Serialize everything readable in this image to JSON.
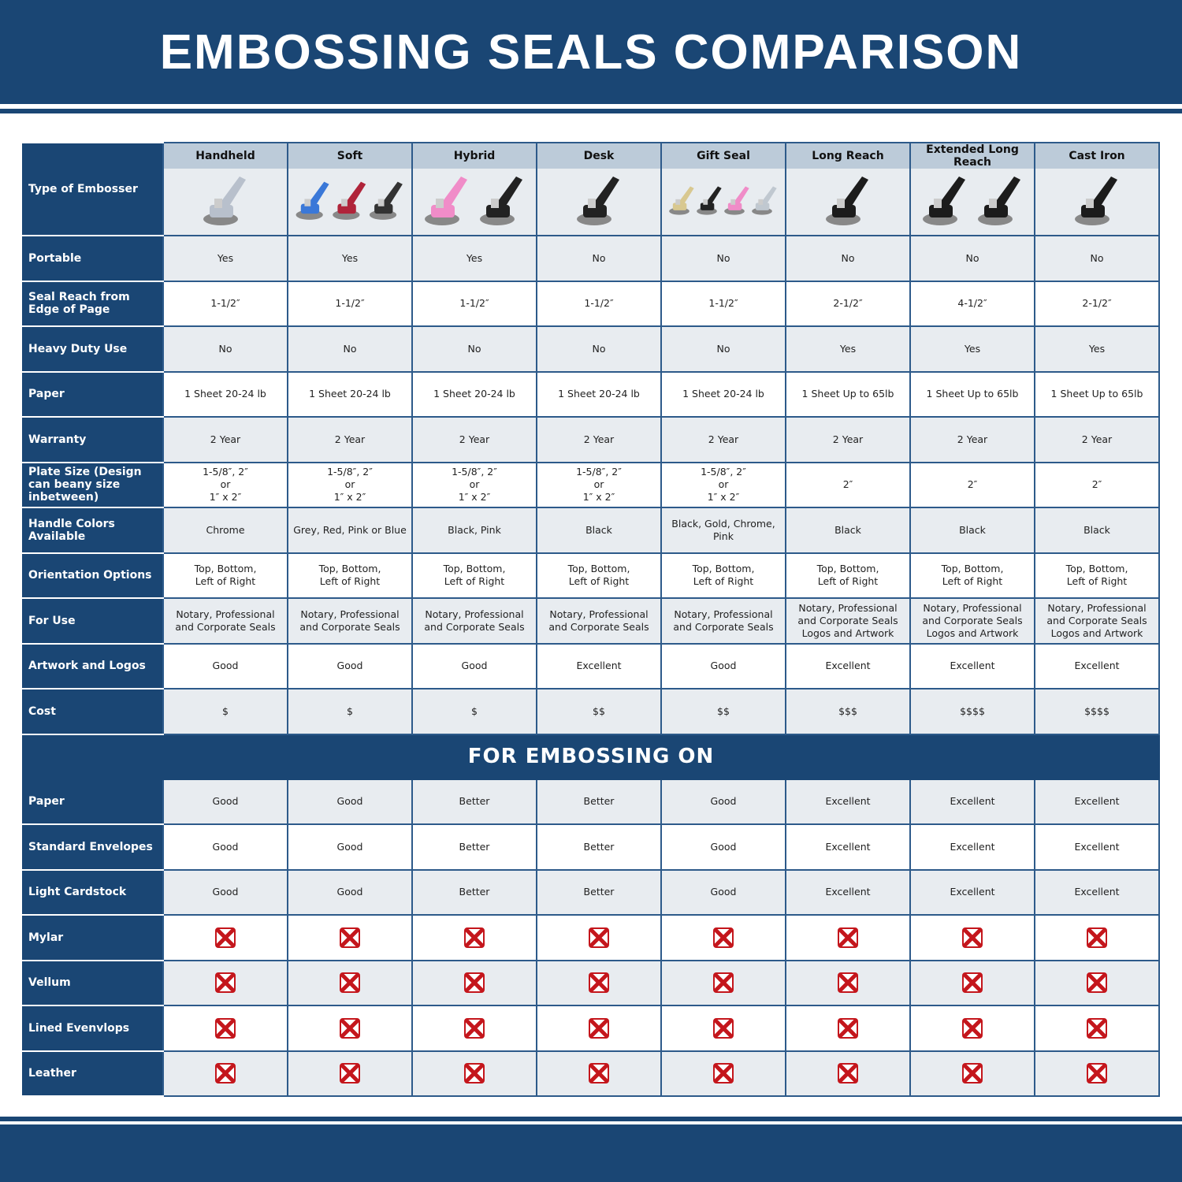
{
  "title": "EMBOSSING SEALS COMPARISON",
  "colors": {
    "primary": "#1a4674",
    "header_band": "#bccbd9",
    "row_alt": "#e8ecf0",
    "x_icon": "#c4161c"
  },
  "corner_label": "Type of Embosser",
  "columns": [
    "Handheld",
    "Soft",
    "Hybrid",
    "Desk",
    "Gift Seal",
    "Long Reach",
    "Extended Long Reach",
    "Cast Iron"
  ],
  "rows": [
    {
      "label": "Portable",
      "values": [
        "Yes",
        "Yes",
        "Yes",
        "No",
        "No",
        "No",
        "No",
        "No"
      ]
    },
    {
      "label": "Seal Reach from Edge of Page",
      "values": [
        "1-1/2″",
        "1-1/2″",
        "1-1/2″",
        "1-1/2″",
        "1-1/2″",
        "2-1/2″",
        "4-1/2″",
        "2-1/2″"
      ]
    },
    {
      "label": "Heavy Duty Use",
      "values": [
        "No",
        "No",
        "No",
        "No",
        "No",
        "Yes",
        "Yes",
        "Yes"
      ]
    },
    {
      "label": "Paper",
      "values": [
        "1 Sheet 20-24 lb",
        "1 Sheet 20-24 lb",
        "1 Sheet 20-24 lb",
        "1 Sheet 20-24 lb",
        "1 Sheet 20-24 lb",
        "1 Sheet Up to 65lb",
        "1 Sheet Up to 65lb",
        "1 Sheet Up to 65lb"
      ]
    },
    {
      "label": "Warranty",
      "values": [
        "2 Year",
        "2 Year",
        "2 Year",
        "2 Year",
        "2 Year",
        "2 Year",
        "2 Year",
        "2 Year"
      ]
    },
    {
      "label": "Plate Size (Design can beany size inbetween)",
      "values": [
        "1-5/8″, 2″\nor\n1″ x 2″",
        "1-5/8″, 2″\nor\n1″ x 2″",
        "1-5/8″, 2″\nor\n1″ x 2″",
        "1-5/8″, 2″\nor\n1″ x 2″",
        "1-5/8″, 2″\nor\n1″ x 2″",
        "2″",
        "2″",
        "2″"
      ]
    },
    {
      "label": "Handle Colors Available",
      "values": [
        "Chrome",
        "Grey, Red, Pink or Blue",
        "Black, Pink",
        "Black",
        "Black, Gold, Chrome, Pink",
        "Black",
        "Black",
        "Black"
      ]
    },
    {
      "label": "Orientation Options",
      "values": [
        "Top, Bottom,\nLeft of Right",
        "Top, Bottom,\nLeft of Right",
        "Top, Bottom,\nLeft of Right",
        "Top, Bottom,\nLeft of Right",
        "Top, Bottom,\nLeft of Right",
        "Top, Bottom,\nLeft of Right",
        "Top, Bottom,\nLeft of Right",
        "Top, Bottom,\nLeft of Right"
      ]
    },
    {
      "label": "For Use",
      "values": [
        "Notary, Professional\nand Corporate Seals",
        "Notary, Professional\nand Corporate Seals",
        "Notary, Professional\nand Corporate Seals",
        "Notary, Professional\nand Corporate Seals",
        "Notary, Professional\nand Corporate Seals",
        "Notary, Professional\nand Corporate Seals\nLogos and Artwork",
        "Notary, Professional\nand Corporate Seals\nLogos and Artwork",
        "Notary, Professional\nand Corporate Seals\nLogos and Artwork"
      ]
    },
    {
      "label": "Artwork and Logos",
      "values": [
        "Good",
        "Good",
        "Good",
        "Excellent",
        "Good",
        "Excellent",
        "Excellent",
        "Excellent"
      ]
    },
    {
      "label": "Cost",
      "values": [
        "$",
        "$",
        "$",
        "$$",
        "$$",
        "$$$",
        "$$$$",
        "$$$$"
      ]
    }
  ],
  "section_title": "FOR EMBOSSING ON",
  "section_rows": [
    {
      "label": "Paper",
      "values": [
        "Good",
        "Good",
        "Better",
        "Better",
        "Good",
        "Excellent",
        "Excellent",
        "Excellent"
      ]
    },
    {
      "label": "Standard Envelopes",
      "values": [
        "Good",
        "Good",
        "Better",
        "Better",
        "Good",
        "Excellent",
        "Excellent",
        "Excellent"
      ]
    },
    {
      "label": "Light Cardstock",
      "values": [
        "Good",
        "Good",
        "Better",
        "Better",
        "Good",
        "Excellent",
        "Excellent",
        "Excellent"
      ]
    },
    {
      "label": "Mylar",
      "icon": "x-mark-icon"
    },
    {
      "label": "Vellum",
      "icon": "x-mark-icon"
    },
    {
      "label": "Lined Evenvlops",
      "icon": "x-mark-icon"
    },
    {
      "label": "Leather",
      "icon": "x-mark-icon"
    }
  ],
  "product_images": [
    [
      "#b8c0cc"
    ],
    [
      "#3a78d8",
      "#b0243a",
      "#333"
    ],
    [
      "#f08cc8",
      "#222"
    ],
    [
      "#222"
    ],
    [
      "#d8c890",
      "#222",
      "#f08cc8",
      "#c0c8d0"
    ],
    [
      "#1c1c1c"
    ],
    [
      "#1c1c1c",
      "#1c1c1c"
    ],
    [
      "#1c1c1c"
    ]
  ]
}
